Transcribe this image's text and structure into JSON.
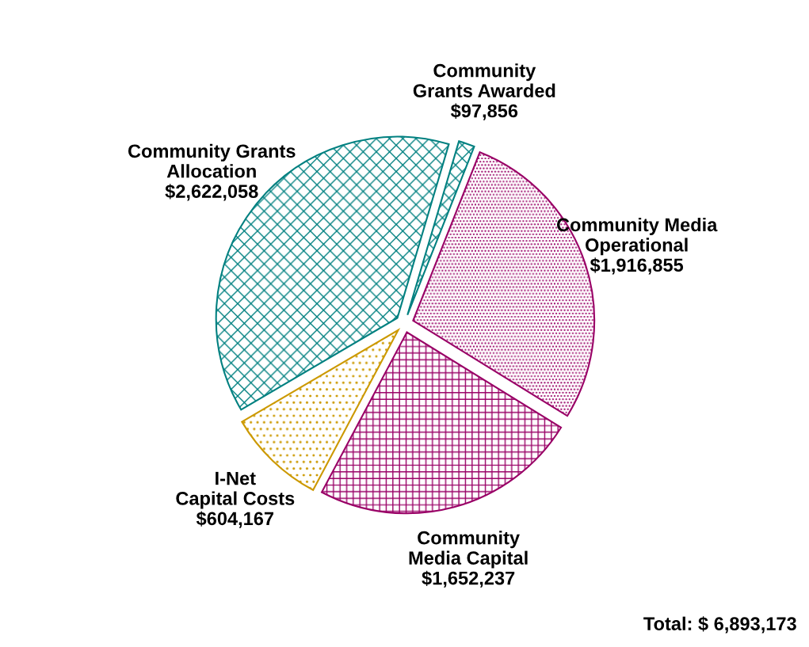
{
  "chart_data": {
    "type": "pie",
    "categories": [
      "Community Grants Awarded",
      "Community Media Operational",
      "Community Media Capital",
      "I-Net Capital Costs",
      "Community Grants Allocation"
    ],
    "values": [
      97856,
      1916855,
      1652237,
      604167,
      2622058
    ],
    "value_labels": [
      "$97,856",
      "$1,916,855",
      "$1,652,237",
      "$604,167",
      "$2,622,058"
    ],
    "colors": [
      "#008080",
      "#990066",
      "#990066",
      "#cc9900",
      "#008080"
    ],
    "annotations": [
      "Total: $ 6,893,173"
    ]
  }
}
